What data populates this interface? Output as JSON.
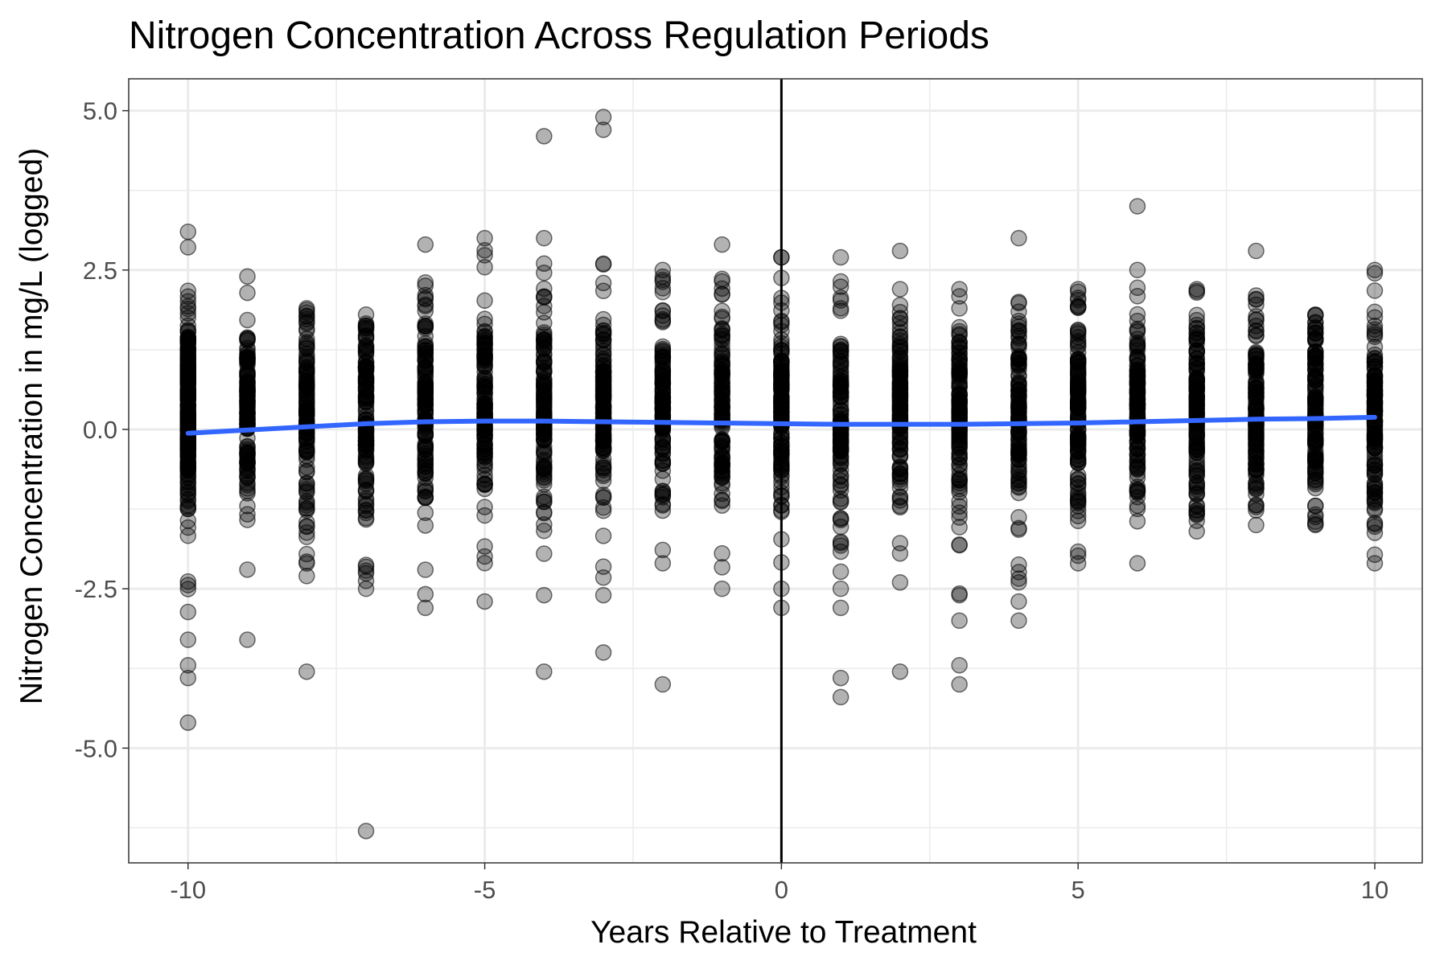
{
  "chart_data": {
    "type": "scatter",
    "title": "Nitrogen Concentration Across Regulation Periods",
    "xlabel": "Years Relative to Treatment",
    "ylabel": "Nitrogen Concentration in mg/L (logged)",
    "xlim": [
      -11,
      10.8
    ],
    "ylim": [
      -6.8,
      5.5
    ],
    "x_ticks": [
      -10,
      -5,
      0,
      5,
      10
    ],
    "x_tick_labels": [
      "-10",
      "-5",
      "0",
      "5",
      "10"
    ],
    "y_ticks": [
      5.0,
      2.5,
      0.0,
      -2.5,
      -5.0
    ],
    "y_tick_labels": [
      "5.0",
      "2.5",
      "0.0",
      "-2.5",
      "-5.0"
    ],
    "grid": true,
    "reference_line": {
      "x": 0
    },
    "point_color": "#000000",
    "point_opacity": 0.3,
    "smooth_color": "#3366FF",
    "columns": [
      {
        "x": -10,
        "range": [
          -3.3,
          3.1
        ],
        "outliers": [
          -3.7,
          -3.9,
          -4.6
        ]
      },
      {
        "x": -9,
        "range": [
          -2.2,
          2.4
        ],
        "outliers": [
          -3.3
        ]
      },
      {
        "x": -8,
        "range": [
          -2.3,
          1.9
        ],
        "outliers": [
          -3.8
        ]
      },
      {
        "x": -7,
        "range": [
          -2.5,
          1.8
        ],
        "outliers": [
          -6.3
        ]
      },
      {
        "x": -6,
        "range": [
          -2.8,
          2.9
        ],
        "outliers": []
      },
      {
        "x": -5,
        "range": [
          -2.7,
          3.0
        ],
        "outliers": []
      },
      {
        "x": -4,
        "range": [
          -2.6,
          3.0
        ],
        "outliers": [
          4.6,
          -3.8
        ]
      },
      {
        "x": -3,
        "range": [
          -2.6,
          2.6
        ],
        "outliers": [
          4.9,
          4.7,
          -3.5
        ]
      },
      {
        "x": -2,
        "range": [
          -2.1,
          2.5
        ],
        "outliers": [
          -4.0
        ]
      },
      {
        "x": -1,
        "range": [
          -2.5,
          2.9
        ],
        "outliers": []
      },
      {
        "x": 0,
        "range": [
          -2.5,
          2.7
        ],
        "outliers": [
          -2.8
        ]
      },
      {
        "x": 1,
        "range": [
          -2.5,
          2.7
        ],
        "outliers": [
          -2.8,
          -3.9,
          -4.2
        ]
      },
      {
        "x": 2,
        "range": [
          -2.4,
          2.2
        ],
        "outliers": [
          2.8,
          -3.8
        ]
      },
      {
        "x": 3,
        "range": [
          -2.6,
          2.2
        ],
        "outliers": [
          -3.0,
          -3.7,
          -4.0
        ]
      },
      {
        "x": 4,
        "range": [
          -2.4,
          2.0
        ],
        "outliers": [
          3.0,
          -2.7,
          -3.0
        ]
      },
      {
        "x": 5,
        "range": [
          -2.1,
          2.2
        ],
        "outliers": []
      },
      {
        "x": 6,
        "range": [
          -2.1,
          2.5
        ],
        "outliers": [
          3.5
        ]
      },
      {
        "x": 7,
        "range": [
          -1.6,
          2.2
        ],
        "outliers": []
      },
      {
        "x": 8,
        "range": [
          -1.5,
          2.1
        ],
        "outliers": [
          2.8
        ]
      },
      {
        "x": 9,
        "range": [
          -1.5,
          1.8
        ],
        "outliers": []
      },
      {
        "x": 10,
        "range": [
          -2.1,
          2.5
        ],
        "outliers": []
      }
    ],
    "smooth_line": {
      "x": [
        -10,
        -9,
        -8,
        -7,
        -6,
        -5,
        -4,
        -3,
        -2,
        -1,
        0,
        1,
        2,
        3,
        4,
        5,
        6,
        7,
        8,
        9,
        10
      ],
      "y": [
        -0.06,
        -0.01,
        0.04,
        0.09,
        0.12,
        0.13,
        0.13,
        0.12,
        0.11,
        0.1,
        0.09,
        0.08,
        0.08,
        0.08,
        0.09,
        0.1,
        0.12,
        0.14,
        0.16,
        0.17,
        0.19
      ]
    }
  }
}
